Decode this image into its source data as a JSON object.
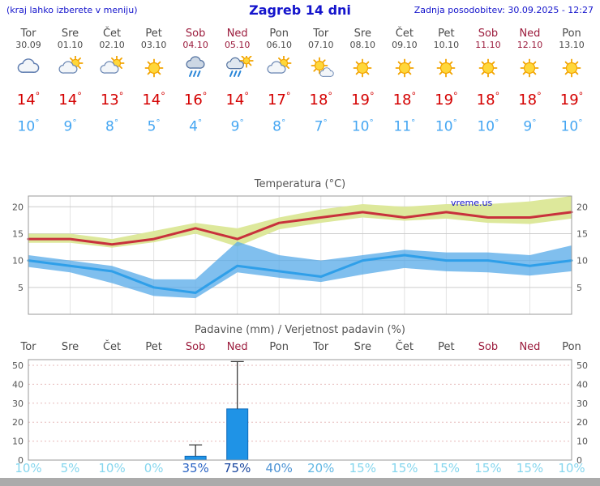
{
  "header": {
    "left_note": "(kraj lahko izberete v meniju)",
    "title": "Zagreb 14 dni",
    "updated": "Zadnja posodobitev: 30.09.2025 - 12:27"
  },
  "watermark": "vreme.us",
  "colors": {
    "link_blue": "#1414cc",
    "tmax_red": "#d40000",
    "tmin_blue": "#45a6f2",
    "weekend_red": "#9b1b3c",
    "weekday_gray": "#4a4a4a",
    "temp_line_max": "#c8313c",
    "temp_band_max": "#dde89b",
    "temp_line_min": "#2f9fe9",
    "temp_band_min": "#56aae8",
    "bar_blue": "#1f93e6",
    "footer_gray": "#ababab"
  },
  "days": [
    {
      "name": "Tor",
      "date": "30.09",
      "weekend": false,
      "icon": "cloudy",
      "tmax": 14,
      "tmin": 10
    },
    {
      "name": "Sre",
      "date": "01.10",
      "weekend": false,
      "icon": "partly-cloudy",
      "tmax": 14,
      "tmin": 9
    },
    {
      "name": "Čet",
      "date": "02.10",
      "weekend": false,
      "icon": "partly-cloudy",
      "tmax": 13,
      "tmin": 8
    },
    {
      "name": "Pet",
      "date": "03.10",
      "weekend": false,
      "icon": "sunny",
      "tmax": 14,
      "tmin": 5
    },
    {
      "name": "Sob",
      "date": "04.10",
      "weekend": true,
      "icon": "rain",
      "tmax": 16,
      "tmin": 4
    },
    {
      "name": "Ned",
      "date": "05.10",
      "weekend": true,
      "icon": "sun-rain",
      "tmax": 14,
      "tmin": 9
    },
    {
      "name": "Pon",
      "date": "06.10",
      "weekend": false,
      "icon": "partly-cloudy",
      "tmax": 17,
      "tmin": 8
    },
    {
      "name": "Tor",
      "date": "07.10",
      "weekend": false,
      "icon": "mostly-sunny",
      "tmax": 18,
      "tmin": 7
    },
    {
      "name": "Sre",
      "date": "08.10",
      "weekend": false,
      "icon": "sunny",
      "tmax": 19,
      "tmin": 10
    },
    {
      "name": "Čet",
      "date": "09.10",
      "weekend": false,
      "icon": "sunny",
      "tmax": 18,
      "tmin": 11
    },
    {
      "name": "Pet",
      "date": "10.10",
      "weekend": false,
      "icon": "sunny",
      "tmax": 19,
      "tmin": 10
    },
    {
      "name": "Sob",
      "date": "11.10",
      "weekend": true,
      "icon": "sunny",
      "tmax": 18,
      "tmin": 10
    },
    {
      "name": "Ned",
      "date": "12.10",
      "weekend": true,
      "icon": "sunny",
      "tmax": 18,
      "tmin": 9
    },
    {
      "name": "Pon",
      "date": "13.10",
      "weekend": false,
      "icon": "sunny",
      "tmax": 19,
      "tmin": 10
    }
  ],
  "chart_data": [
    {
      "type": "line",
      "title": "Temperatura (°C)",
      "x_labels": [
        "Tor",
        "Sre",
        "Čet",
        "Pet",
        "Sob",
        "Ned",
        "Pon",
        "Tor",
        "Sre",
        "Čet",
        "Pet",
        "Sob",
        "Ned",
        "Pon"
      ],
      "ylim": [
        0,
        22
      ],
      "yticks": [
        5,
        10,
        15,
        20
      ],
      "grid": true,
      "legend": "none",
      "series": [
        {
          "name": "max_temp",
          "color": "#c8313c",
          "values": [
            14,
            14,
            13,
            14,
            16,
            14,
            17,
            18,
            19,
            18,
            19,
            18,
            18,
            19
          ]
        },
        {
          "name": "min_temp",
          "color": "#2f9fe9",
          "values": [
            10,
            9,
            8,
            5,
            4,
            9,
            8,
            7,
            10,
            11,
            10,
            10,
            9,
            10
          ]
        },
        {
          "name": "max_band_upper",
          "values": [
            15,
            15,
            14,
            15.5,
            17,
            16,
            18,
            19.5,
            20.5,
            20,
            20.5,
            20.5,
            21,
            22
          ]
        },
        {
          "name": "max_band_lower",
          "values": [
            13.3,
            13.3,
            12.4,
            13.4,
            15,
            12.6,
            15.8,
            17,
            18,
            17.4,
            17.8,
            17,
            16.8,
            17.8
          ]
        },
        {
          "name": "min_band_upper",
          "values": [
            11,
            10,
            9,
            6.5,
            6.5,
            13.5,
            11,
            10,
            11,
            12,
            11.5,
            11.5,
            11,
            12.8
          ]
        },
        {
          "name": "min_band_lower",
          "values": [
            8.8,
            7.8,
            5.8,
            3.4,
            3,
            7.8,
            6.8,
            6,
            7.4,
            8.6,
            8,
            7.8,
            7.2,
            8
          ]
        }
      ]
    },
    {
      "type": "bar",
      "title": "Padavine (mm) / Verjetnost padavin (%)",
      "categories": [
        "Tor",
        "Sre",
        "Čet",
        "Pet",
        "Sob",
        "Ned",
        "Pon",
        "Tor",
        "Sre",
        "Čet",
        "Pet",
        "Sob",
        "Ned",
        "Pon"
      ],
      "weekend_flags": [
        false,
        false,
        false,
        false,
        true,
        true,
        false,
        false,
        false,
        false,
        false,
        true,
        true,
        false
      ],
      "values": [
        0,
        0,
        0,
        0,
        2,
        27,
        0,
        0,
        0,
        0,
        0,
        0,
        0,
        0
      ],
      "whisker_max": [
        0,
        0,
        0,
        0,
        8,
        52,
        0,
        0,
        0,
        0,
        0,
        0,
        0,
        0
      ],
      "probabilities": [
        "10%",
        "5%",
        "10%",
        "0%",
        "35%",
        "75%",
        "40%",
        "20%",
        "15%",
        "15%",
        "15%",
        "15%",
        "15%",
        "10%"
      ],
      "prob_colors": [
        "#85d6ee",
        "#85d6ee",
        "#85d6ee",
        "#85d6ee",
        "#2b64c4",
        "#17449e",
        "#4b92d4",
        "#62b8e4",
        "#85d6ee",
        "#85d6ee",
        "#85d6ee",
        "#85d6ee",
        "#85d6ee",
        "#85d6ee"
      ],
      "ylim": [
        0,
        53
      ],
      "yticks": [
        0,
        10,
        20,
        30,
        40,
        50
      ]
    }
  ]
}
